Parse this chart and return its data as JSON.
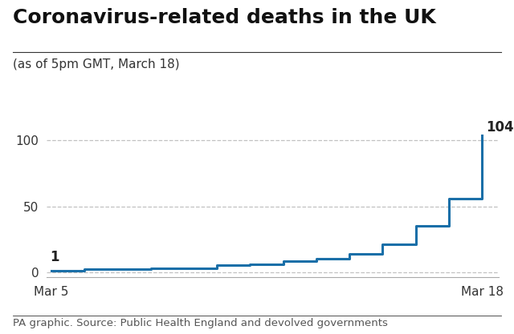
{
  "title": "Coronavirus-related deaths in the UK",
  "subtitle": "(as of 5pm GMT, March 18)",
  "footer": "PA graphic. Source: Public Health England and devolved governments",
  "line_color": "#1a6fa8",
  "line_width": 2.2,
  "background_color": "#ffffff",
  "dates": [
    5,
    6,
    7,
    8,
    9,
    10,
    11,
    12,
    13,
    14,
    15,
    16,
    17,
    18
  ],
  "deaths": [
    1,
    2,
    2,
    3,
    3,
    5,
    6,
    8,
    10,
    14,
    21,
    35,
    56,
    104
  ],
  "xlim_start": 5,
  "xlim_end": 18,
  "ylim": [
    -4,
    118
  ],
  "yticks": [
    0,
    50,
    100
  ],
  "first_label": "1",
  "last_label": "104",
  "xlabel_start": "Mar 5",
  "xlabel_end": "Mar 18",
  "grid_color": "#bbbbbb",
  "grid_style": "--",
  "grid_alpha": 0.9,
  "title_fontsize": 18,
  "subtitle_fontsize": 11,
  "footer_fontsize": 9.5,
  "tick_fontsize": 11,
  "annotation_fontsize": 12,
  "divider_color": "#333333",
  "footer_divider_color": "#333333"
}
